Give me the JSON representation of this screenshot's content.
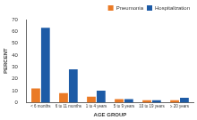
{
  "chart_data": {
    "type": "bar",
    "categories": [
      "< 6 months",
      "6 to 11 months",
      "1 to 4 years",
      "5 to 9 years",
      "10 to 19 years",
      "≥ 20 years"
    ],
    "series": [
      {
        "name": "Pneumonia",
        "color": "#ea7a26",
        "values": [
          12,
          8,
          5,
          3,
          2,
          2
        ]
      },
      {
        "name": "Hospitalization",
        "color": "#1d5ba6",
        "values": [
          63,
          28,
          10,
          3,
          2,
          4
        ]
      }
    ],
    "x_label": "AGE GROUP",
    "y_label": "PERCENT",
    "ylim": [
      0,
      70
    ],
    "yticks": [
      0,
      10,
      20,
      30,
      40,
      50,
      60,
      70
    ],
    "grid": false,
    "legend": "top-right"
  }
}
